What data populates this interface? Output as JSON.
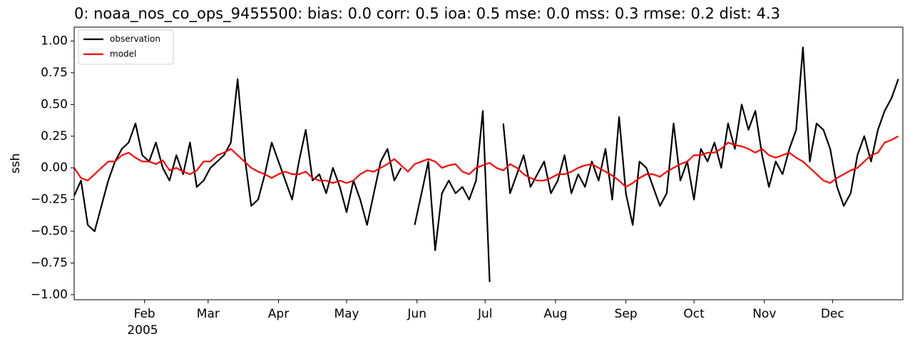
{
  "chart_data": {
    "type": "line",
    "title": "0: noaa_nos_co_ops_9455500: bias: 0.0  corr: 0.5  ioa: 0.5  mse: 0.0  mss: 0.3  rmse: 0.2  dist: 4.3",
    "ylabel": "ssh",
    "x_sublabel": "2005",
    "legend": "upper left",
    "x": [
      0,
      3,
      6,
      9,
      12,
      15,
      18,
      21,
      24,
      27,
      30,
      33,
      36,
      39,
      42,
      45,
      48,
      51,
      54,
      57,
      60,
      63,
      66,
      69,
      72,
      75,
      78,
      81,
      84,
      87,
      90,
      93,
      96,
      99,
      102,
      105,
      108,
      111,
      114,
      117,
      120,
      123,
      126,
      129,
      132,
      135,
      138,
      141,
      144,
      147,
      150,
      153,
      156,
      159,
      162,
      165,
      168,
      171,
      174,
      177,
      180,
      183,
      186,
      189,
      192,
      195,
      198,
      201,
      204,
      207,
      210,
      213,
      216,
      219,
      222,
      225,
      228,
      231,
      234,
      237,
      240,
      243,
      246,
      249,
      252,
      255,
      258,
      261,
      264,
      267,
      270,
      273,
      276,
      279,
      282,
      285,
      288,
      291,
      294,
      297,
      300,
      303,
      306,
      309,
      312,
      315,
      318,
      321,
      324,
      327,
      330,
      333,
      336,
      339,
      342,
      345,
      348,
      351,
      354,
      357,
      360,
      363
    ],
    "series": [
      {
        "name": "observation",
        "color": "#000000",
        "values": [
          -0.22,
          -0.1,
          -0.45,
          -0.5,
          -0.3,
          -0.1,
          0.05,
          0.15,
          0.2,
          0.35,
          0.1,
          0.05,
          0.2,
          0.0,
          -0.1,
          0.1,
          -0.05,
          0.2,
          -0.15,
          -0.1,
          0.0,
          0.05,
          0.1,
          0.2,
          0.7,
          0.1,
          -0.3,
          -0.25,
          -0.05,
          0.2,
          0.05,
          -0.1,
          -0.25,
          0.05,
          0.3,
          -0.1,
          -0.05,
          -0.2,
          0.0,
          -0.15,
          -0.35,
          -0.1,
          -0.25,
          -0.45,
          -0.2,
          0.05,
          0.15,
          -0.1,
          0.0,
          null,
          -0.45,
          -0.2,
          0.05,
          -0.65,
          -0.2,
          -0.1,
          -0.2,
          -0.15,
          -0.25,
          -0.1,
          0.45,
          -0.9,
          null,
          0.35,
          -0.2,
          -0.05,
          0.1,
          -0.15,
          -0.05,
          0.05,
          -0.2,
          -0.1,
          0.1,
          -0.2,
          -0.05,
          -0.15,
          0.05,
          -0.1,
          0.15,
          -0.25,
          0.4,
          -0.2,
          -0.45,
          0.05,
          0.0,
          -0.15,
          -0.3,
          -0.2,
          0.35,
          -0.1,
          0.05,
          -0.25,
          0.15,
          0.05,
          0.2,
          0.0,
          0.35,
          0.15,
          0.5,
          0.3,
          0.45,
          0.1,
          -0.15,
          0.05,
          -0.05,
          0.15,
          0.3,
          0.95,
          0.05,
          0.35,
          0.3,
          0.15,
          -0.15,
          -0.3,
          -0.2,
          0.1,
          0.25,
          0.05,
          0.3,
          0.45,
          0.55,
          0.7
        ]
      },
      {
        "name": "model",
        "color": "#ff0000",
        "values": [
          0.0,
          -0.08,
          -0.1,
          -0.05,
          0.0,
          0.05,
          0.05,
          0.1,
          0.12,
          0.08,
          0.05,
          0.05,
          0.03,
          0.06,
          -0.02,
          0.0,
          -0.03,
          -0.05,
          -0.02,
          0.05,
          0.05,
          0.1,
          0.12,
          0.15,
          0.1,
          0.05,
          0.0,
          -0.03,
          -0.05,
          -0.08,
          -0.05,
          -0.03,
          -0.05,
          -0.05,
          -0.03,
          -0.08,
          -0.1,
          -0.1,
          -0.12,
          -0.1,
          -0.12,
          -0.1,
          -0.05,
          -0.02,
          -0.03,
          0.0,
          0.03,
          0.07,
          0.02,
          -0.03,
          0.03,
          0.05,
          0.07,
          0.05,
          0.0,
          0.02,
          0.03,
          -0.03,
          -0.05,
          0.0,
          0.02,
          0.04,
          0.0,
          -0.02,
          0.03,
          0.0,
          -0.05,
          -0.08,
          -0.1,
          -0.1,
          -0.08,
          -0.05,
          -0.05,
          -0.03,
          0.0,
          0.02,
          0.03,
          0.0,
          -0.03,
          -0.06,
          -0.1,
          -0.15,
          -0.12,
          -0.08,
          -0.05,
          -0.05,
          -0.07,
          -0.03,
          0.0,
          0.03,
          0.05,
          0.1,
          0.1,
          0.12,
          0.12,
          0.15,
          0.2,
          0.18,
          0.17,
          0.15,
          0.12,
          0.15,
          0.1,
          0.08,
          0.1,
          0.12,
          0.08,
          0.05,
          0.0,
          -0.05,
          -0.1,
          -0.12,
          -0.08,
          -0.05,
          -0.02,
          0.0,
          0.05,
          0.1,
          0.12,
          0.2,
          0.22,
          0.25
        ]
      }
    ],
    "xlim": [
      0,
      365
    ],
    "xticks": [
      {
        "value": 31,
        "label": "Feb"
      },
      {
        "value": 59,
        "label": "Mar"
      },
      {
        "value": 90,
        "label": "Apr"
      },
      {
        "value": 120,
        "label": "May"
      },
      {
        "value": 151,
        "label": "Jun"
      },
      {
        "value": 181,
        "label": "Jul"
      },
      {
        "value": 212,
        "label": "Aug"
      },
      {
        "value": 243,
        "label": "Sep"
      },
      {
        "value": 273,
        "label": "Oct"
      },
      {
        "value": 304,
        "label": "Nov"
      },
      {
        "value": 334,
        "label": "Dec"
      }
    ],
    "ylim": [
      -1.04,
      1.11
    ],
    "yticks": [
      {
        "value": -1,
        "label": "−1.00"
      },
      {
        "value": -0.75,
        "label": "−0.75"
      },
      {
        "value": -0.5,
        "label": "−0.50"
      },
      {
        "value": -0.25,
        "label": "−0.25"
      },
      {
        "value": 0,
        "label": "0.00"
      },
      {
        "value": 0.25,
        "label": "0.25"
      },
      {
        "value": 0.5,
        "label": "0.50"
      },
      {
        "value": 0.75,
        "label": "0.75"
      },
      {
        "value": 1,
        "label": "1.00"
      }
    ]
  }
}
